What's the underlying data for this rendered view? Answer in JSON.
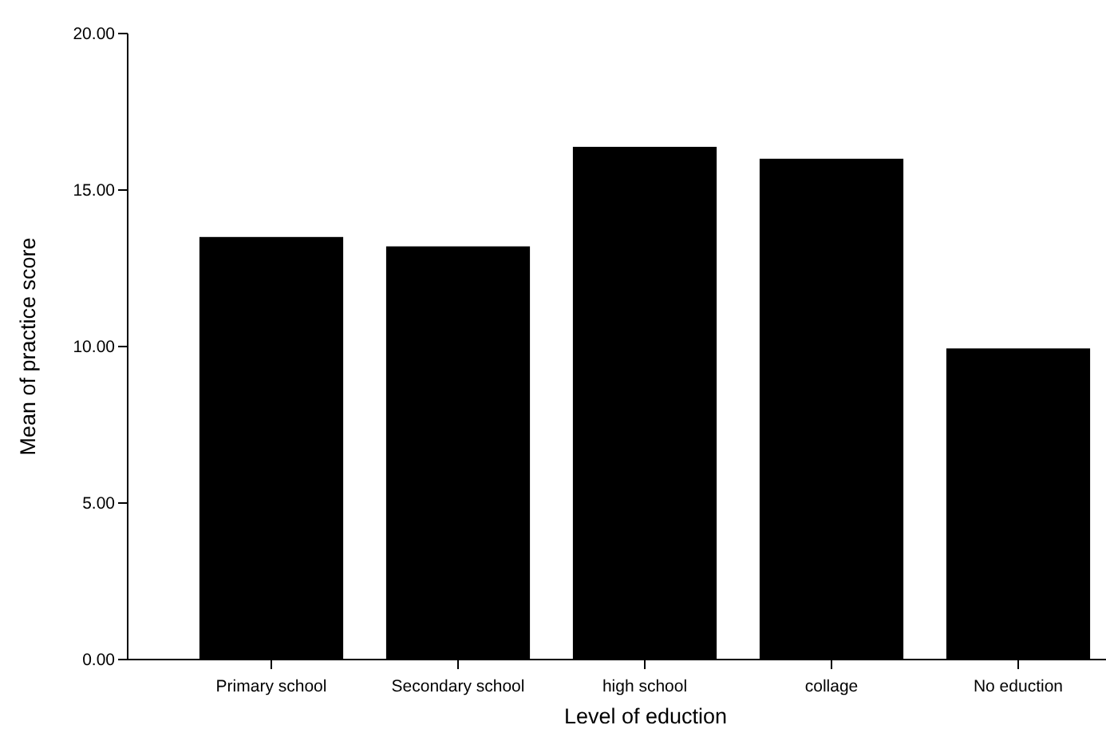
{
  "chart_data": {
    "type": "bar",
    "xlabel": "Level of eduction",
    "ylabel": "Mean of practice score",
    "categories": [
      "Primary school",
      "Secondary school",
      "high school",
      "collage",
      "No eduction"
    ],
    "values": [
      13.5,
      13.2,
      16.38,
      16.0,
      9.94
    ],
    "color": "#000000",
    "ylim": [
      0,
      20
    ],
    "yticks": [
      {
        "value": 0,
        "label": "0.00"
      },
      {
        "value": 5,
        "label": "5.00"
      },
      {
        "value": 10,
        "label": "10.00"
      },
      {
        "value": 15,
        "label": "15.00"
      },
      {
        "value": 20,
        "label": "20.00"
      }
    ]
  }
}
